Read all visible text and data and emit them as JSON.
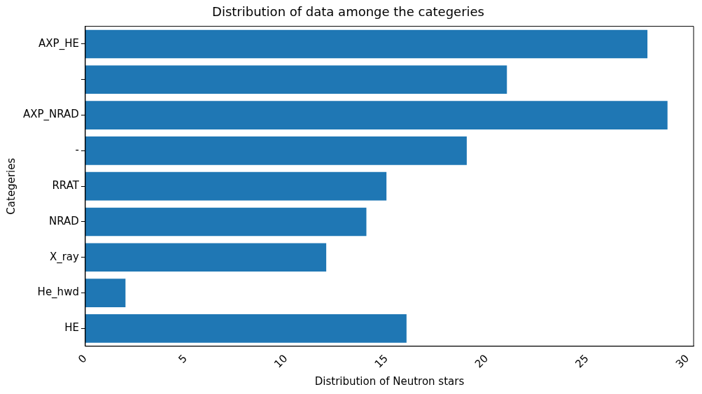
{
  "chart_data": {
    "type": "bar",
    "orientation": "horizontal",
    "title": "Distribution of data amonge the categeries",
    "xlabel": "Distribution of Neutron stars",
    "ylabel": "Categeries",
    "categories": [
      "AXP_HE",
      null,
      "AXP_NRAD",
      "-",
      "RRAT",
      "NRAD",
      "X_ray",
      "He_hwd",
      "HE"
    ],
    "values": [
      28,
      21,
      29,
      19,
      15,
      14,
      12,
      2,
      16
    ],
    "color": "#1f77b4",
    "xlim": [
      0,
      30.3
    ],
    "xticks": [
      0,
      5,
      10,
      15,
      20,
      25,
      30
    ],
    "grid": false,
    "legend": false
  }
}
